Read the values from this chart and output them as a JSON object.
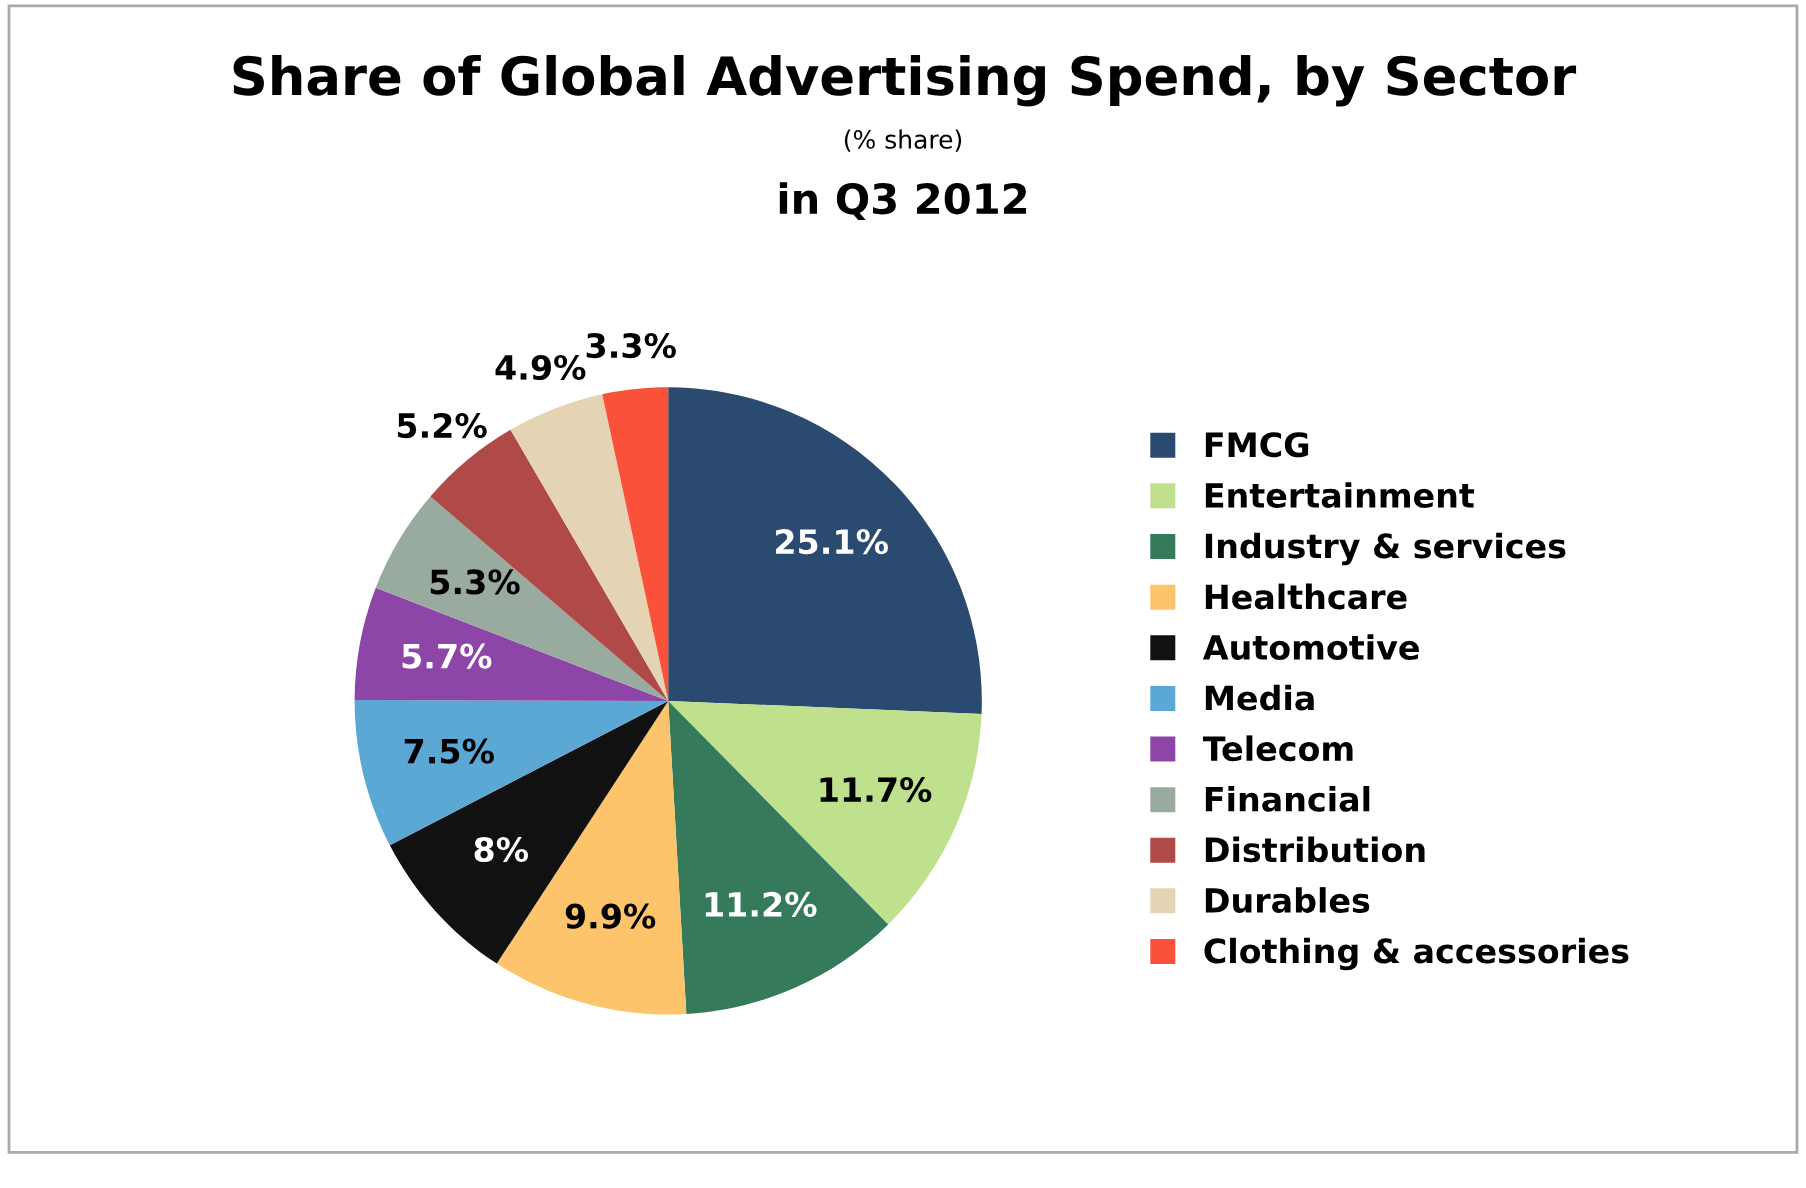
{
  "chart_data": {
    "type": "pie",
    "title": "Share of Global Advertising Spend, by Sector",
    "subtitle": "(% share)",
    "annotations": [
      "in Q3 2012"
    ],
    "categories": [
      "FMCG",
      "Entertainment",
      "Industry & services",
      "Healthcare",
      "Automotive",
      "Media",
      "Telecom",
      "Financial",
      "Distribution",
      "Durables",
      "Clothing & accessories"
    ],
    "values": [
      25.1,
      11.7,
      11.2,
      9.9,
      8,
      7.5,
      5.7,
      5.3,
      5.2,
      4.9,
      3.3
    ],
    "value_labels": [
      "25.1%",
      "11.7%",
      "11.2%",
      "9.9%",
      "8%",
      "7.5%",
      "5.7%",
      "5.3%",
      "5.2%",
      "4.9%",
      "3.3%"
    ],
    "colors": [
      "#2b4a70",
      "#bfe08c",
      "#357a5b",
      "#fdc46c",
      "#111111",
      "#5ba8d5",
      "#8e45a8",
      "#99ab9f",
      "#b04a48",
      "#e4d4b3",
      "#fa513a"
    ],
    "legend": "right"
  }
}
